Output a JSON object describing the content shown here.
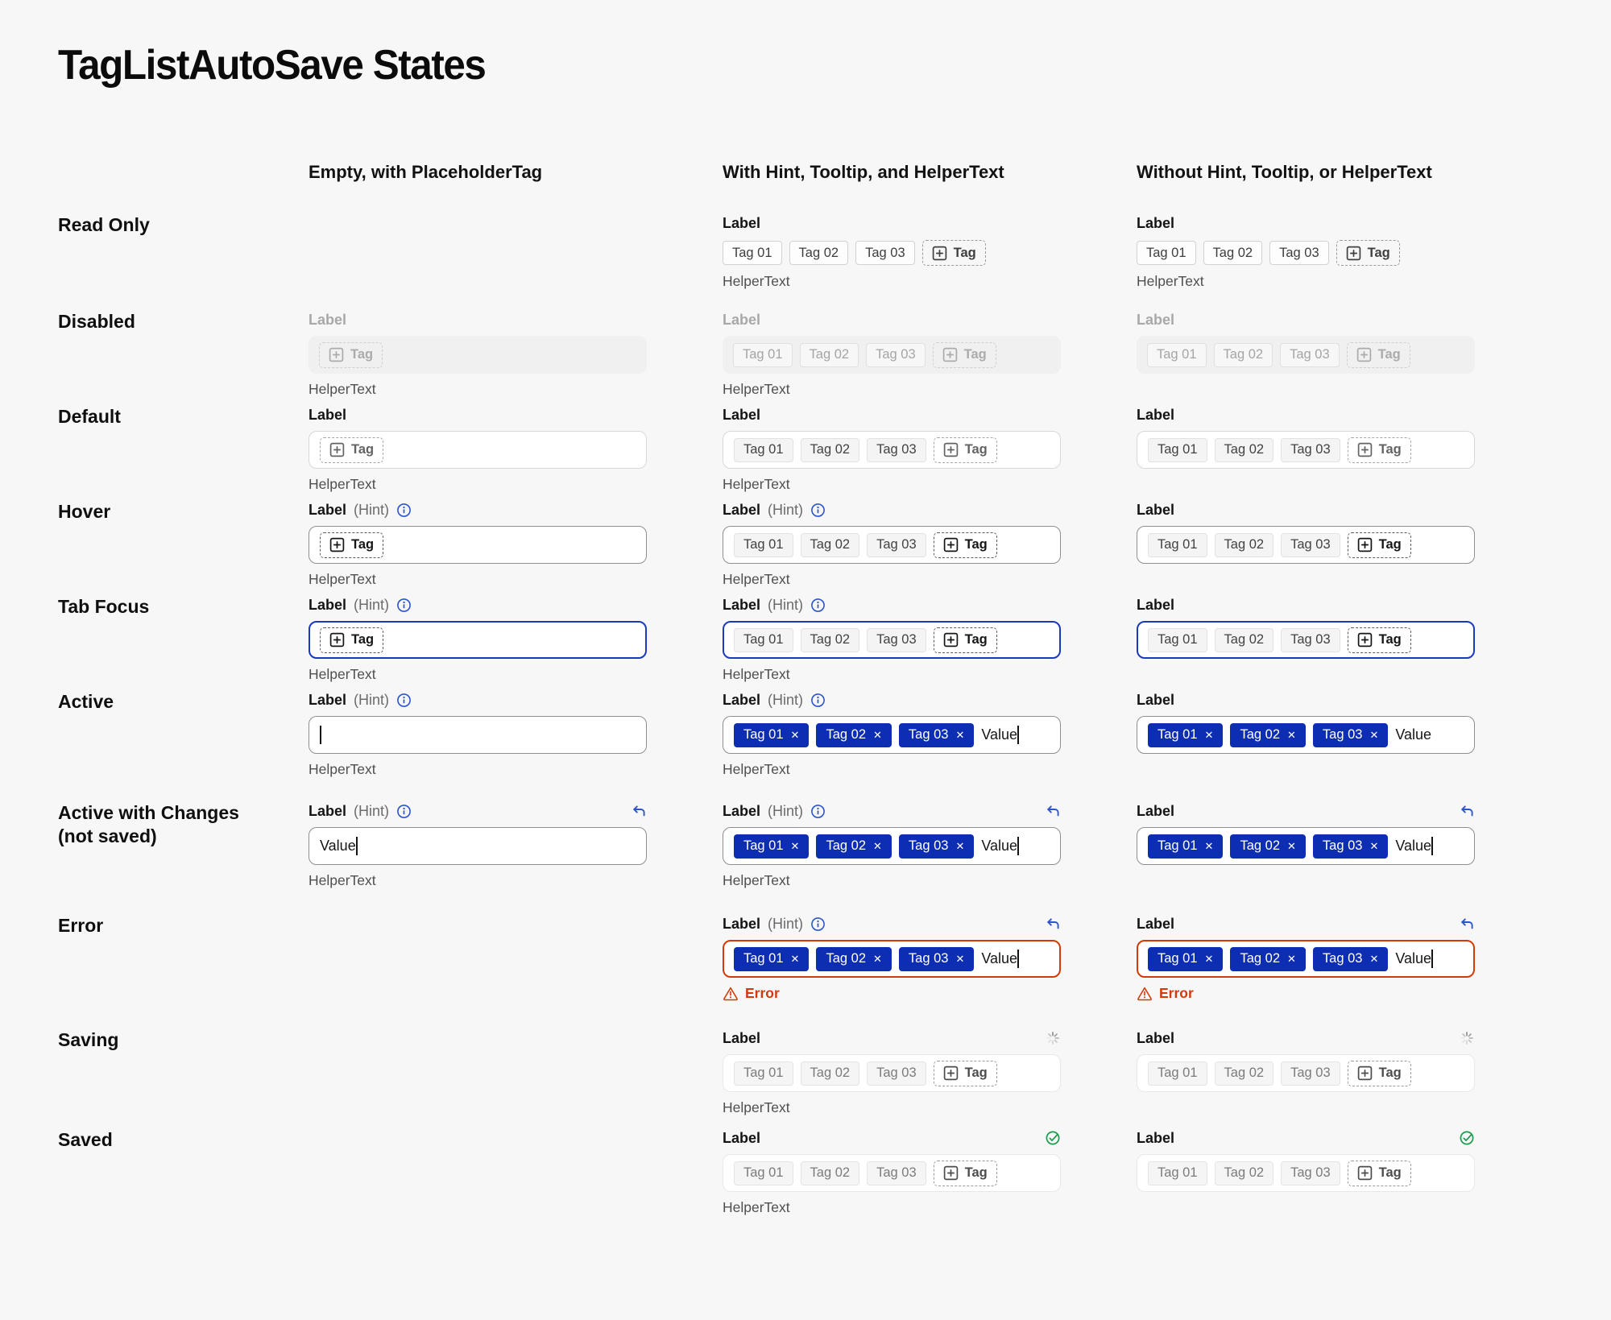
{
  "page": {
    "title": "TagListAutoSave States"
  },
  "columns": [
    {
      "id": "empty",
      "title": "Empty, with PlaceholderTag"
    },
    {
      "id": "with",
      "title": "With Hint, Tooltip, and HelperText"
    },
    {
      "id": "without",
      "title": "Without Hint, Tooltip, or HelperText"
    }
  ],
  "strings": {
    "label": "Label",
    "hint": "(Hint)",
    "helper": "HelperText",
    "error": "Error",
    "value": "Value",
    "tag": "Tag",
    "tags": [
      "Tag 01",
      "Tag 02",
      "Tag 03"
    ]
  },
  "icons": {
    "info": "info-icon",
    "undo": "undo-icon",
    "spinner": "saving-spinner-icon",
    "check": "saved-check-icon",
    "warning": "error-warning-icon",
    "plusbox": "plus-box-icon",
    "remove": "remove-tag-icon"
  },
  "colors": {
    "page_bg": "#f7f7f8",
    "text": "#141414",
    "text_secondary": "#4f4f4f",
    "text_disabled": "#a8a8a8",
    "accent_blue": "#2d55cb",
    "tag_blue": "#0d2eb2",
    "focus_blue": "#1a39bd",
    "error_red": "#d13b07",
    "success_green": "#169e4b",
    "border_default": "#d8d8d8",
    "border_hover": "#8f8f8f",
    "border_subtle": "#e8e8e8",
    "disabled_bg": "#f0f0f1"
  },
  "states": [
    {
      "id": "read-only",
      "label": "Read Only",
      "gap": 26,
      "cells": [
        null,
        {
          "box": "none",
          "chips": "outline",
          "placeholder": "readonly",
          "helper": true
        },
        {
          "box": "none",
          "chips": "outline",
          "placeholder": "readonly",
          "helper": true
        }
      ]
    },
    {
      "id": "disabled",
      "label": "Disabled",
      "gap": 10,
      "cells": [
        {
          "labelDisabled": true,
          "box": "disabled",
          "placeholder": "disabled",
          "helper": true
        },
        {
          "labelDisabled": true,
          "box": "disabled",
          "chips": "disabled",
          "placeholder": "disabled",
          "helper": true
        },
        {
          "labelDisabled": true,
          "box": "disabled",
          "chips": "disabled",
          "placeholder": "disabled"
        }
      ]
    },
    {
      "id": "default",
      "label": "Default",
      "gap": 10,
      "cells": [
        {
          "box": "default",
          "placeholder": "gray",
          "helper": true
        },
        {
          "box": "default",
          "chips": "field",
          "placeholder": "gray",
          "helper": true
        },
        {
          "box": "default",
          "chips": "field",
          "placeholder": "gray"
        }
      ]
    },
    {
      "id": "hover",
      "label": "Hover",
      "gap": 10,
      "cells": [
        {
          "hint": true,
          "box": "hover",
          "placeholder": "dark",
          "helper": true
        },
        {
          "hint": true,
          "box": "hover",
          "chips": "field",
          "placeholder": "dark",
          "helper": true
        },
        {
          "box": "hover",
          "chips": "field",
          "placeholder": "dark"
        }
      ]
    },
    {
      "id": "tab-focus",
      "label": "Tab Focus",
      "gap": 10,
      "cells": [
        {
          "hint": true,
          "box": "focus",
          "placeholder": "dark",
          "helper": true
        },
        {
          "hint": true,
          "box": "focus",
          "chips": "field",
          "placeholder": "dark",
          "helper": true
        },
        {
          "box": "focus",
          "chips": "field",
          "placeholder": "dark"
        }
      ]
    },
    {
      "id": "active",
      "label": "Active",
      "gap": 30,
      "cells": [
        {
          "hint": true,
          "box": "active",
          "caret": true,
          "helper": true
        },
        {
          "hint": true,
          "box": "active",
          "chips": "blue",
          "value": true,
          "caret": true,
          "helper": true
        },
        {
          "box": "active",
          "chips": "blue",
          "value": true
        }
      ]
    },
    {
      "id": "active-changes",
      "label": "Active with Changes",
      "label2": "(not saved)",
      "gap": 32,
      "cells": [
        {
          "hint": true,
          "icon": "undo",
          "box": "active",
          "value": true,
          "caret": true,
          "helper": true
        },
        {
          "hint": true,
          "icon": "undo",
          "box": "active",
          "chips": "blue",
          "value": true,
          "caret": true,
          "helper": true
        },
        {
          "icon": "undo",
          "box": "active",
          "chips": "blue",
          "value": true,
          "caret": true
        }
      ]
    },
    {
      "id": "error",
      "label": "Error",
      "gap": 34,
      "cells": [
        null,
        {
          "hint": true,
          "icon": "undo",
          "box": "error",
          "chips": "blue",
          "value": true,
          "caret": true,
          "error": true
        },
        {
          "icon": "undo",
          "box": "error",
          "chips": "blue",
          "value": true,
          "caret": true,
          "error": true
        }
      ]
    },
    {
      "id": "saving",
      "label": "Saving",
      "gap": 16,
      "cells": [
        null,
        {
          "icon": "spinner",
          "box": "autosave",
          "chips": "dim",
          "placeholder": "dim",
          "helper": true
        },
        {
          "icon": "spinner",
          "box": "autosave",
          "chips": "dim",
          "placeholder": "dim"
        }
      ]
    },
    {
      "id": "saved",
      "label": "Saved",
      "gap": 0,
      "cells": [
        null,
        {
          "icon": "check",
          "box": "autosave",
          "chips": "dim",
          "placeholder": "dim",
          "helper": true
        },
        {
          "icon": "check",
          "box": "autosave",
          "chips": "dim",
          "placeholder": "dim"
        }
      ]
    }
  ]
}
